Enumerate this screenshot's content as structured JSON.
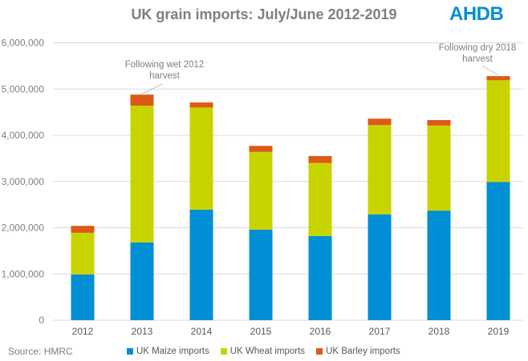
{
  "title": "UK grain imports: July/June 2012-2019",
  "logo": "AHDB",
  "source": "Source: HMRC",
  "annotations": [
    {
      "text": "Following wet 2012 harvest",
      "line1": "Following wet 2012",
      "line2": "harvest",
      "category": "2013"
    },
    {
      "text": "Following dry 2018 harvest",
      "line1": "Following dry 2018",
      "line2": "harvest",
      "category": "2019"
    }
  ],
  "chart_data": {
    "type": "bar",
    "stacked": true,
    "title": "UK grain imports: July/June 2012-2019",
    "xlabel": "",
    "ylabel": "",
    "categories": [
      "2012",
      "2013",
      "2014",
      "2015",
      "2016",
      "2017",
      "2018",
      "2019"
    ],
    "ylim": [
      0,
      6000000
    ],
    "yticks": [
      0,
      1000000,
      2000000,
      3000000,
      4000000,
      5000000,
      6000000
    ],
    "ytick_labels": [
      "0",
      "1,000,000",
      "2,000,000",
      "3,000,000",
      "4,000,000",
      "5,000,000",
      "6,000,000"
    ],
    "grid": true,
    "legend": "bottom",
    "series": [
      {
        "name": "UK Maize imports",
        "color": "#008fd5",
        "values": [
          990000,
          1680000,
          2390000,
          1960000,
          1820000,
          2290000,
          2370000,
          2990000
        ]
      },
      {
        "name": "UK Wheat imports",
        "color": "#c8d400",
        "values": [
          900000,
          2960000,
          2210000,
          1680000,
          1580000,
          1930000,
          1840000,
          2200000
        ]
      },
      {
        "name": "UK Barley imports",
        "color": "#dc5a15",
        "values": [
          150000,
          240000,
          110000,
          130000,
          150000,
          140000,
          120000,
          90000
        ]
      }
    ]
  }
}
